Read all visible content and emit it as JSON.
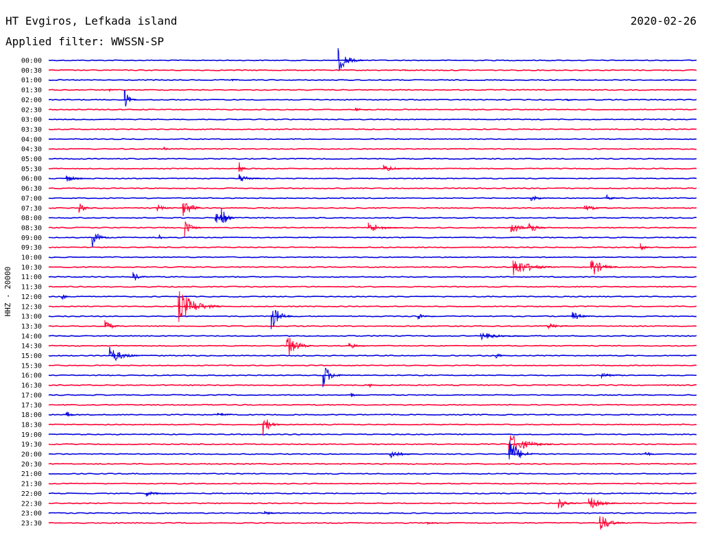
{
  "header": {
    "station": "HT Evgiros, Lefkada island",
    "date": "2020-02-26",
    "filter": "Applied filter: WWSSN-SP"
  },
  "chart_data": {
    "type": "helicorder",
    "ylabel": "HHZ - 20000",
    "colors": {
      "blue": "#0000dd",
      "red": "#ff0033"
    },
    "rows": [
      "00:00",
      "00:30",
      "01:00",
      "01:30",
      "02:00",
      "02:30",
      "03:00",
      "03:30",
      "04:00",
      "04:30",
      "05:00",
      "05:30",
      "06:00",
      "06:30",
      "07:00",
      "07:30",
      "08:00",
      "08:30",
      "09:00",
      "09:30",
      "10:00",
      "10:30",
      "11:00",
      "11:30",
      "12:00",
      "12:30",
      "13:00",
      "13:30",
      "14:00",
      "14:30",
      "15:00",
      "15:30",
      "16:00",
      "16:30",
      "17:00",
      "17:30",
      "18:00",
      "18:30",
      "19:00",
      "19:30",
      "20:00",
      "20:30",
      "21:00",
      "21:30",
      "22:00",
      "22:30",
      "23:00",
      "23:30"
    ],
    "x_minutes": [
      0,
      30
    ],
    "events": [
      {
        "row": "00:00",
        "minute": 13.4,
        "amplitude": 18,
        "duration": 1.2
      },
      {
        "row": "00:30",
        "minute": 16.5,
        "amplitude": 2,
        "duration": 0.6
      },
      {
        "row": "01:00",
        "minute": 8.5,
        "amplitude": 3,
        "duration": 0.3
      },
      {
        "row": "01:30",
        "minute": 2.8,
        "amplitude": 3,
        "duration": 0.3
      },
      {
        "row": "02:00",
        "minute": 3.5,
        "amplitude": 16,
        "duration": 0.6
      },
      {
        "row": "02:00",
        "minute": 24.0,
        "amplitude": 3,
        "duration": 0.5
      },
      {
        "row": "02:30",
        "minute": 14.2,
        "amplitude": 4,
        "duration": 0.6
      },
      {
        "row": "04:30",
        "minute": 5.3,
        "amplitude": 4,
        "duration": 0.5
      },
      {
        "row": "05:30",
        "minute": 15.5,
        "amplitude": 5,
        "duration": 2.0
      },
      {
        "row": "06:00",
        "minute": 0.8,
        "amplitude": 6,
        "duration": 1.2
      },
      {
        "row": "06:00",
        "minute": 8.8,
        "amplitude": 8,
        "duration": 1.2
      },
      {
        "row": "05:30",
        "minute": 8.8,
        "amplitude": 14,
        "duration": 0.4
      },
      {
        "row": "07:00",
        "minute": 22.3,
        "amplitude": 7,
        "duration": 1.0
      },
      {
        "row": "07:00",
        "minute": 25.8,
        "amplitude": 6,
        "duration": 0.8
      },
      {
        "row": "07:30",
        "minute": 1.4,
        "amplitude": 8,
        "duration": 0.8
      },
      {
        "row": "07:30",
        "minute": 5.0,
        "amplitude": 7,
        "duration": 0.8
      },
      {
        "row": "07:30",
        "minute": 6.2,
        "amplitude": 18,
        "duration": 1.0
      },
      {
        "row": "07:30",
        "minute": 24.8,
        "amplitude": 5,
        "duration": 1.4
      },
      {
        "row": "08:00",
        "minute": 7.7,
        "amplitude": 10,
        "duration": 1.0
      },
      {
        "row": "08:00",
        "minute": 8.0,
        "amplitude": 22,
        "duration": 0.6
      },
      {
        "row": "08:30",
        "minute": 6.3,
        "amplitude": 14,
        "duration": 0.8
      },
      {
        "row": "08:30",
        "minute": 14.8,
        "amplitude": 9,
        "duration": 1.6
      },
      {
        "row": "08:30",
        "minute": 21.4,
        "amplitude": 12,
        "duration": 1.0
      },
      {
        "row": "08:30",
        "minute": 22.2,
        "amplitude": 16,
        "duration": 0.8
      },
      {
        "row": "09:00",
        "minute": 2.0,
        "amplitude": 16,
        "duration": 0.8
      },
      {
        "row": "09:00",
        "minute": 5.1,
        "amplitude": 5,
        "duration": 0.4
      },
      {
        "row": "09:30",
        "minute": 27.4,
        "amplitude": 8,
        "duration": 0.5
      },
      {
        "row": "10:30",
        "minute": 21.5,
        "amplitude": 16,
        "duration": 2.0
      },
      {
        "row": "10:30",
        "minute": 25.1,
        "amplitude": 18,
        "duration": 1.2
      },
      {
        "row": "11:00",
        "minute": 3.9,
        "amplitude": 8,
        "duration": 0.8
      },
      {
        "row": "12:00",
        "minute": 0.6,
        "amplitude": 14,
        "duration": 0.3
      },
      {
        "row": "12:30",
        "minute": 6.0,
        "amplitude": 26,
        "duration": 2.0
      },
      {
        "row": "13:00",
        "minute": 10.3,
        "amplitude": 22,
        "duration": 1.0
      },
      {
        "row": "13:00",
        "minute": 17.1,
        "amplitude": 5,
        "duration": 0.8
      },
      {
        "row": "13:00",
        "minute": 24.2,
        "amplitude": 9,
        "duration": 1.0
      },
      {
        "row": "13:30",
        "minute": 2.6,
        "amplitude": 12,
        "duration": 0.7
      },
      {
        "row": "13:30",
        "minute": 23.1,
        "amplitude": 5,
        "duration": 1.2
      },
      {
        "row": "14:00",
        "minute": 20.0,
        "amplitude": 6,
        "duration": 2.0
      },
      {
        "row": "14:30",
        "minute": 11.0,
        "amplitude": 20,
        "duration": 1.2
      },
      {
        "row": "14:30",
        "minute": 13.9,
        "amplitude": 5,
        "duration": 1.0
      },
      {
        "row": "15:00",
        "minute": 2.8,
        "amplitude": 14,
        "duration": 1.6
      },
      {
        "row": "15:00",
        "minute": 20.7,
        "amplitude": 8,
        "duration": 0.5
      },
      {
        "row": "16:00",
        "minute": 12.7,
        "amplitude": 20,
        "duration": 0.9
      },
      {
        "row": "16:00",
        "minute": 25.6,
        "amplitude": 6,
        "duration": 1.0
      },
      {
        "row": "16:30",
        "minute": 14.8,
        "amplitude": 5,
        "duration": 0.6
      },
      {
        "row": "17:00",
        "minute": 14.0,
        "amplitude": 4,
        "duration": 0.5
      },
      {
        "row": "18:00",
        "minute": 0.8,
        "amplitude": 6,
        "duration": 0.8
      },
      {
        "row": "18:00",
        "minute": 7.8,
        "amplitude": 5,
        "duration": 0.8
      },
      {
        "row": "18:30",
        "minute": 9.9,
        "amplitude": 22,
        "duration": 0.8
      },
      {
        "row": "19:30",
        "minute": 21.3,
        "amplitude": 18,
        "duration": 2.0
      },
      {
        "row": "20:00",
        "minute": 15.8,
        "amplitude": 9,
        "duration": 1.2
      },
      {
        "row": "20:00",
        "minute": 21.3,
        "amplitude": 26,
        "duration": 1.2
      },
      {
        "row": "20:00",
        "minute": 27.6,
        "amplitude": 5,
        "duration": 0.8
      },
      {
        "row": "22:00",
        "minute": 4.5,
        "amplitude": 4,
        "duration": 1.4
      },
      {
        "row": "22:30",
        "minute": 23.6,
        "amplitude": 10,
        "duration": 1.0
      },
      {
        "row": "22:30",
        "minute": 25.0,
        "amplitude": 12,
        "duration": 1.4
      },
      {
        "row": "23:00",
        "minute": 10.0,
        "amplitude": 4,
        "duration": 0.8
      },
      {
        "row": "23:30",
        "minute": 25.5,
        "amplitude": 16,
        "duration": 1.2
      },
      {
        "row": "23:30",
        "minute": 17.5,
        "amplitude": 3,
        "duration": 0.8
      }
    ]
  }
}
